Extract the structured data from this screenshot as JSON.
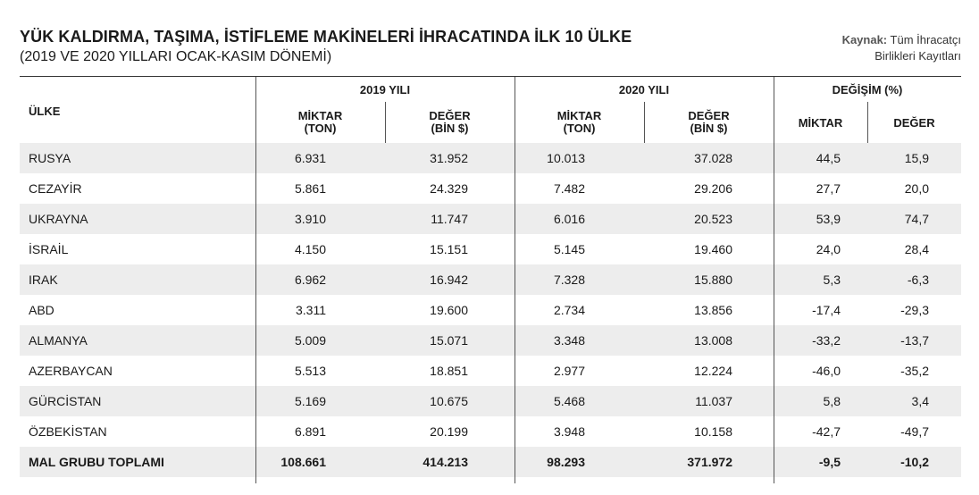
{
  "header": {
    "title": "YÜK KALDIRMA, TAŞIMA, İSTİFLEME MAKİNELERİ İHRACATINDA İLK 10 ÜLKE",
    "subtitle": "(2019 VE 2020 YILLARI OCAK-KASIM DÖNEMİ)",
    "source_label": "Kaynak:",
    "source_line1": "Tüm İhracatçı",
    "source_line2": "Birlikleri Kayıtları"
  },
  "columns": {
    "country": "ÜLKE",
    "y2019": "2019 YILI",
    "y2020": "2020 YILI",
    "change": "DEĞİŞİM (%)",
    "qty_line1": "MİKTAR",
    "qty_line2": "(TON)",
    "val_line1": "DEĞER",
    "val_line2": "(BİN $)",
    "change_qty": "MİKTAR",
    "change_val": "DEĞER"
  },
  "rows": [
    {
      "country": "RUSYA",
      "q2019": "6.931",
      "v2019": "31.952",
      "q2020": "10.013",
      "v2020": "37.028",
      "dq": "44,5",
      "dv": "15,9"
    },
    {
      "country": "CEZAYİR",
      "q2019": "5.861",
      "v2019": "24.329",
      "q2020": "7.482",
      "v2020": "29.206",
      "dq": "27,7",
      "dv": "20,0"
    },
    {
      "country": "UKRAYNA",
      "q2019": "3.910",
      "v2019": "11.747",
      "q2020": "6.016",
      "v2020": "20.523",
      "dq": "53,9",
      "dv": "74,7"
    },
    {
      "country": "İSRAİL",
      "q2019": "4.150",
      "v2019": "15.151",
      "q2020": "5.145",
      "v2020": "19.460",
      "dq": "24,0",
      "dv": "28,4"
    },
    {
      "country": "IRAK",
      "q2019": "6.962",
      "v2019": "16.942",
      "q2020": "7.328",
      "v2020": "15.880",
      "dq": "5,3",
      "dv": "-6,3"
    },
    {
      "country": "ABD",
      "q2019": "3.311",
      "v2019": "19.600",
      "q2020": "2.734",
      "v2020": "13.856",
      "dq": "-17,4",
      "dv": "-29,3"
    },
    {
      "country": "ALMANYA",
      "q2019": "5.009",
      "v2019": "15.071",
      "q2020": "3.348",
      "v2020": "13.008",
      "dq": "-33,2",
      "dv": "-13,7"
    },
    {
      "country": "AZERBAYCAN",
      "q2019": "5.513",
      "v2019": "18.851",
      "q2020": "2.977",
      "v2020": "12.224",
      "dq": "-46,0",
      "dv": "-35,2"
    },
    {
      "country": "GÜRCİSTAN",
      "q2019": "5.169",
      "v2019": "10.675",
      "q2020": "5.468",
      "v2020": "11.037",
      "dq": "5,8",
      "dv": "3,4"
    },
    {
      "country": "ÖZBEKİSTAN",
      "q2019": "6.891",
      "v2019": "20.199",
      "q2020": "3.948",
      "v2020": "10.158",
      "dq": "-42,7",
      "dv": "-49,7"
    }
  ],
  "total": {
    "country": "MAL GRUBU TOPLAMI",
    "q2019": "108.661",
    "v2019": "414.213",
    "q2020": "98.293",
    "v2020": "371.972",
    "dq": "-9,5",
    "dv": "-10,2"
  },
  "colors": {
    "row_shade": "#ededed",
    "rule": "#333333"
  }
}
